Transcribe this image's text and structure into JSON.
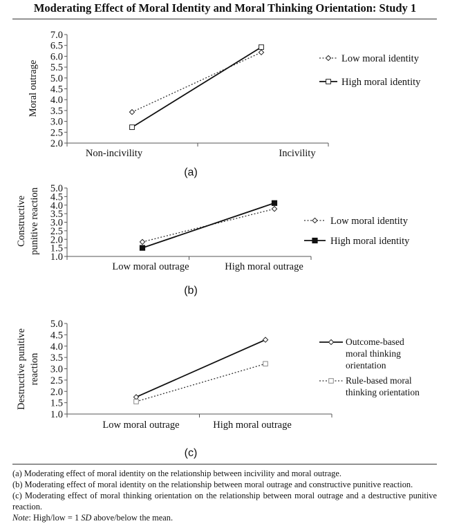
{
  "title": "Moderating Effect of Moral Identity and Moral Thinking Orientation: Study 1",
  "chart_data": [
    {
      "type": "line",
      "panel_label": "(a)",
      "categories": [
        "Non-incivility",
        "Incivility"
      ],
      "ylabel": "Moral outrage",
      "xlabel": "",
      "ylim": [
        2.0,
        7.0
      ],
      "yticks": [
        "2.0",
        "2.5",
        "3.0",
        "3.5",
        "4.0",
        "4.5",
        "5.0",
        "5.5",
        "6.0",
        "6.5",
        "7.0"
      ],
      "legend_position": "right",
      "series": [
        {
          "name": "Low moral identity",
          "values": [
            3.43,
            6.18
          ],
          "line": "dotted",
          "marker": "diamond-open"
        },
        {
          "name": "High moral identity",
          "values": [
            2.73,
            6.42
          ],
          "line": "solid",
          "marker": "square-open"
        }
      ]
    },
    {
      "type": "line",
      "panel_label": "(b)",
      "categories": [
        "Low moral outrage",
        "High moral outrage"
      ],
      "ylabel": "Constructive punitive reaction",
      "ylabel_lines": [
        "Constructive",
        "punitive reaction"
      ],
      "xlabel": "",
      "ylim": [
        1.0,
        5.0
      ],
      "yticks": [
        "1.0",
        "1.5",
        "2.0",
        "2.5",
        "3.0",
        "3.5",
        "4.0",
        "4.5",
        "5.0"
      ],
      "legend_position": "right",
      "series": [
        {
          "name": "Low moral identity",
          "values": [
            1.85,
            3.78
          ],
          "line": "dotted",
          "marker": "diamond-open"
        },
        {
          "name": "High moral identity",
          "values": [
            1.5,
            4.12
          ],
          "line": "solid",
          "marker": "square-filled"
        }
      ]
    },
    {
      "type": "line",
      "panel_label": "(c)",
      "categories": [
        "Low moral outrage",
        "High moral outrage"
      ],
      "ylabel": "Destructive punitive reaction",
      "ylabel_lines": [
        "Destructive punitive",
        "reaction"
      ],
      "xlabel": "",
      "ylim": [
        1.0,
        5.0
      ],
      "yticks": [
        "1.0",
        "1.5",
        "2.0",
        "2.5",
        "3.0",
        "3.5",
        "4.0",
        "4.5",
        "5.0"
      ],
      "legend_position": "right",
      "series": [
        {
          "name": "Outcome-based moral thinking orientation",
          "legend_lines": [
            "Outcome-based",
            "moral thinking",
            "orientation"
          ],
          "values": [
            1.75,
            4.28
          ],
          "line": "solid",
          "marker": "diamond-open"
        },
        {
          "name": "Rule-based moral thinking orientation",
          "legend_lines": [
            "Rule-based moral",
            "thinking orientation"
          ],
          "values": [
            1.55,
            3.22
          ],
          "line": "dotted",
          "marker": "square-open-gray"
        }
      ]
    }
  ],
  "captions": {
    "a": "(a) Moderating effect of moral identity on the relationship between incivility and moral outrage.",
    "b": "(b) Moderating effect of moral identity on the relationship between moral outrage and constructive punitive reaction.",
    "c": "(c) Moderating effect of moral thinking orientation on the relationship between moral outrage and a destructive punitive reaction.",
    "note_label": "Note",
    "note_text": ": High/low = 1 ",
    "note_sd": "SD",
    "note_tail": " above/below the mean."
  }
}
